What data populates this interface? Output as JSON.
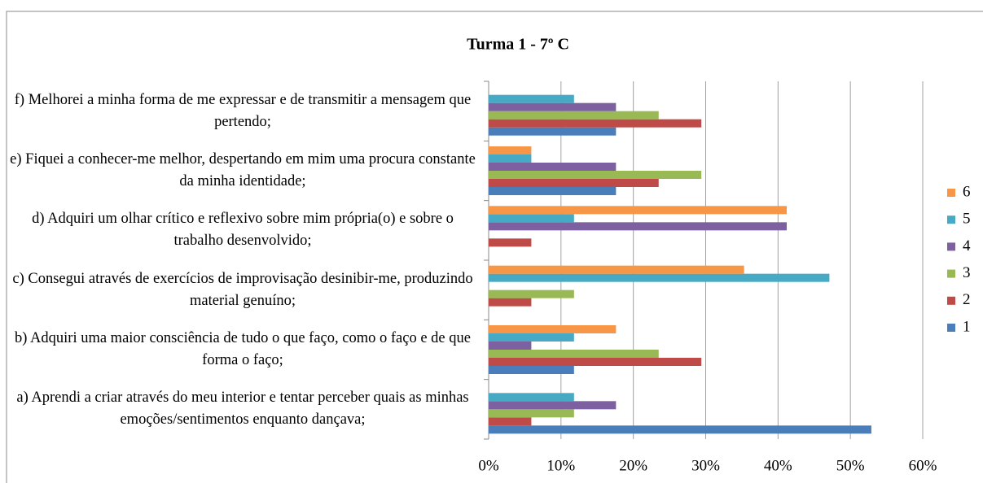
{
  "chart_data": {
    "type": "hbar",
    "title": "Turma 1 - 7º C",
    "categories": [
      "a) Aprendi a criar através do meu interior e tentar perceber quais as minhas emoções/sentimentos enquanto dançava;",
      "b) Adquiri uma maior consciência de tudo o que faço, como o faço e de que forma o faço;",
      "c) Consegui através de exercícios de improvisação desinibir-me, produzindo material genuíno;",
      "d) Adquiri um olhar crítico e reflexivo sobre mim própria(o) e sobre o trabalho desenvolvido;",
      "e) Fiquei a conhecer-me melhor, despertando em mim uma procura constante da minha identidade;",
      "f) Melhorei a minha forma de me expressar e de transmitir a mensagem que pertendo;"
    ],
    "series": [
      {
        "name": "1",
        "color": "#4a7ebb",
        "values": [
          52.9,
          11.8,
          0,
          0,
          17.6,
          17.6
        ]
      },
      {
        "name": "2",
        "color": "#be4b48",
        "values": [
          5.9,
          29.4,
          5.9,
          5.9,
          23.5,
          29.4
        ]
      },
      {
        "name": "3",
        "color": "#98b954",
        "values": [
          11.8,
          23.5,
          11.8,
          0,
          29.4,
          23.5
        ]
      },
      {
        "name": "4",
        "color": "#7d60a0",
        "values": [
          17.6,
          5.9,
          0,
          41.2,
          17.6,
          17.6
        ]
      },
      {
        "name": "5",
        "color": "#46aac5",
        "values": [
          11.8,
          11.8,
          47.1,
          11.8,
          5.9,
          11.8
        ]
      },
      {
        "name": "6",
        "color": "#f79646",
        "values": [
          0,
          17.6,
          35.3,
          41.2,
          5.9,
          0
        ]
      }
    ],
    "xlim": [
      0,
      60
    ],
    "xticks": [
      {
        "value": 0,
        "label": "0%"
      },
      {
        "value": 10,
        "label": "10%"
      },
      {
        "value": 20,
        "label": "20%"
      },
      {
        "value": 30,
        "label": "30%"
      },
      {
        "value": 40,
        "label": "40%"
      },
      {
        "value": 50,
        "label": "50%"
      },
      {
        "value": 60,
        "label": "60%"
      }
    ],
    "grid": true,
    "legend": "right"
  }
}
